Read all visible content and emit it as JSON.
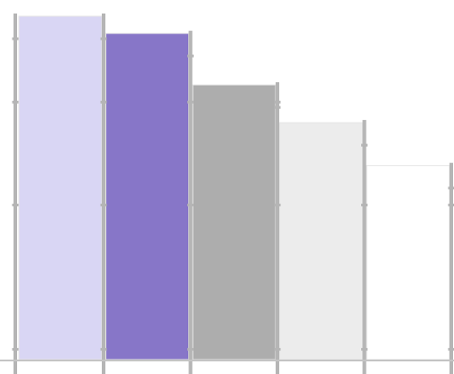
{
  "chart_data": {
    "type": "bar",
    "categories": [
      "",
      "",
      "",
      "",
      ""
    ],
    "values": [
      100,
      95,
      80,
      69,
      56.5
    ],
    "ylim": [
      0,
      100
    ],
    "grid": false,
    "legend": "none",
    "bar_colors": [
      "#d9d6f4",
      "#8776c8",
      "#adadad",
      "#ececec",
      "#ffffff"
    ],
    "divider_color": "#b5b5b5",
    "bar_outline_color": "#e6e6e6",
    "axis_color": "#c4c4c4"
  }
}
